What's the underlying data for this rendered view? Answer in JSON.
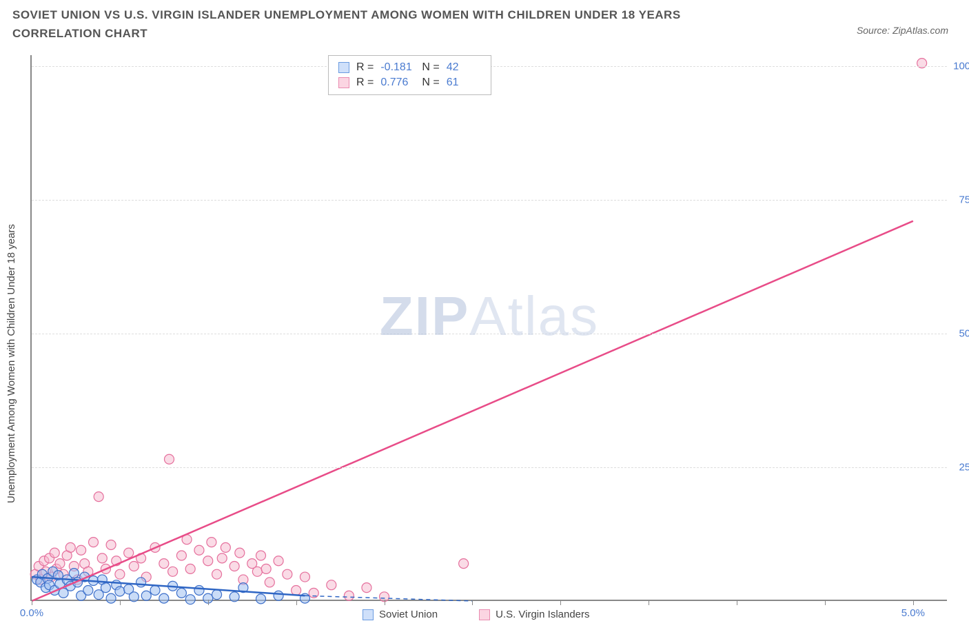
{
  "header": {
    "title": "SOVIET UNION VS U.S. VIRGIN ISLANDER UNEMPLOYMENT AMONG WOMEN WITH CHILDREN UNDER 18 YEARS CORRELATION CHART",
    "source_prefix": "Source: ",
    "source_name": "ZipAtlas.com"
  },
  "chart": {
    "type": "scatter",
    "y_axis_label": "Unemployment Among Women with Children Under 18 years",
    "watermark_bold": "ZIP",
    "watermark_light": "Atlas",
    "background_color": "#ffffff",
    "grid_color": "#dddddd",
    "axis_color": "#888888",
    "tick_label_color": "#4a7bd0",
    "xlim": [
      0,
      5.2
    ],
    "ylim": [
      0,
      102
    ],
    "x_ticks": [
      0,
      0.5,
      1.0,
      1.5,
      2.0,
      2.5,
      3.0,
      3.5,
      4.0,
      4.5,
      5.0
    ],
    "x_tick_labels": {
      "0": "0.0%",
      "5.0": "5.0%"
    },
    "y_grid": [
      25,
      50,
      75,
      100
    ],
    "y_tick_labels": [
      "25.0%",
      "50.0%",
      "75.0%",
      "100.0%"
    ],
    "stats": [
      {
        "swatch_fill": "#cfe0fa",
        "swatch_border": "#6a9be0",
        "r_label": "R = ",
        "r_value": "-0.181",
        "n_label": "N = ",
        "n_value": "42"
      },
      {
        "swatch_fill": "#fbd5e2",
        "swatch_border": "#e98bb0",
        "r_label": "R = ",
        "r_value": "0.776",
        "n_label": "N = ",
        "n_value": "61"
      }
    ],
    "legend": [
      {
        "swatch_fill": "#cfe0fa",
        "swatch_border": "#6a9be0",
        "label": "Soviet Union"
      },
      {
        "swatch_fill": "#fbd5e2",
        "swatch_border": "#e98bb0",
        "label": "U.S. Virgin Islanders"
      }
    ],
    "series_a": {
      "name": "Soviet Union",
      "marker_fill": "#9fc0f0",
      "marker_stroke": "#3d6fc9",
      "marker_fill_opacity": 0.55,
      "marker_radius": 7,
      "trend_color": "#2f66c4",
      "trend_width": 2.5,
      "trend_dash_extension": true,
      "trend": {
        "x1": 0,
        "y1": 4.5,
        "x2": 1.55,
        "y2": 1.0
      },
      "trend_dash": {
        "x1": 1.55,
        "y1": 1.0,
        "x2": 2.5,
        "y2": 0
      },
      "points": [
        [
          0.03,
          4.0
        ],
        [
          0.05,
          3.5
        ],
        [
          0.06,
          5.0
        ],
        [
          0.08,
          2.5
        ],
        [
          0.09,
          4.2
        ],
        [
          0.1,
          3.0
        ],
        [
          0.12,
          5.5
        ],
        [
          0.13,
          2.0
        ],
        [
          0.15,
          4.8
        ],
        [
          0.16,
          3.2
        ],
        [
          0.18,
          1.5
        ],
        [
          0.2,
          4.0
        ],
        [
          0.22,
          2.8
        ],
        [
          0.24,
          5.2
        ],
        [
          0.26,
          3.5
        ],
        [
          0.28,
          1.0
        ],
        [
          0.3,
          4.5
        ],
        [
          0.32,
          2.0
        ],
        [
          0.35,
          3.8
        ],
        [
          0.38,
          1.2
        ],
        [
          0.4,
          4.0
        ],
        [
          0.42,
          2.5
        ],
        [
          0.45,
          0.5
        ],
        [
          0.48,
          3.0
        ],
        [
          0.5,
          1.8
        ],
        [
          0.55,
          2.2
        ],
        [
          0.58,
          0.8
        ],
        [
          0.62,
          3.5
        ],
        [
          0.65,
          1.0
        ],
        [
          0.7,
          2.0
        ],
        [
          0.75,
          0.5
        ],
        [
          0.8,
          2.8
        ],
        [
          0.85,
          1.5
        ],
        [
          0.9,
          0.3
        ],
        [
          0.95,
          2.0
        ],
        [
          1.0,
          0.5
        ],
        [
          1.05,
          1.2
        ],
        [
          1.15,
          0.8
        ],
        [
          1.2,
          2.5
        ],
        [
          1.3,
          0.4
        ],
        [
          1.4,
          1.0
        ],
        [
          1.55,
          0.5
        ]
      ]
    },
    "series_b": {
      "name": "U.S. Virgin Islanders",
      "marker_fill": "#f5b8cd",
      "marker_stroke": "#e56f9c",
      "marker_fill_opacity": 0.5,
      "marker_radius": 7,
      "trend_color": "#e84c88",
      "trend_width": 2.5,
      "trend": {
        "x1": 0,
        "y1": 0,
        "x2": 5.0,
        "y2": 71
      },
      "points": [
        [
          0.02,
          5.0
        ],
        [
          0.04,
          6.5
        ],
        [
          0.05,
          4.0
        ],
        [
          0.07,
          7.5
        ],
        [
          0.08,
          5.5
        ],
        [
          0.1,
          8.0
        ],
        [
          0.11,
          4.5
        ],
        [
          0.13,
          9.0
        ],
        [
          0.14,
          6.0
        ],
        [
          0.16,
          7.0
        ],
        [
          0.18,
          5.0
        ],
        [
          0.2,
          8.5
        ],
        [
          0.22,
          10.0
        ],
        [
          0.24,
          6.5
        ],
        [
          0.26,
          4.0
        ],
        [
          0.28,
          9.5
        ],
        [
          0.3,
          7.0
        ],
        [
          0.32,
          5.5
        ],
        [
          0.35,
          11.0
        ],
        [
          0.38,
          19.5
        ],
        [
          0.4,
          8.0
        ],
        [
          0.42,
          6.0
        ],
        [
          0.45,
          10.5
        ],
        [
          0.48,
          7.5
        ],
        [
          0.5,
          5.0
        ],
        [
          0.55,
          9.0
        ],
        [
          0.58,
          6.5
        ],
        [
          0.62,
          8.0
        ],
        [
          0.65,
          4.5
        ],
        [
          0.7,
          10.0
        ],
        [
          0.75,
          7.0
        ],
        [
          0.78,
          26.5
        ],
        [
          0.8,
          5.5
        ],
        [
          0.85,
          8.5
        ],
        [
          0.88,
          11.5
        ],
        [
          0.9,
          6.0
        ],
        [
          0.95,
          9.5
        ],
        [
          1.0,
          7.5
        ],
        [
          1.02,
          11.0
        ],
        [
          1.05,
          5.0
        ],
        [
          1.08,
          8.0
        ],
        [
          1.1,
          10.0
        ],
        [
          1.15,
          6.5
        ],
        [
          1.18,
          9.0
        ],
        [
          1.2,
          4.0
        ],
        [
          1.25,
          7.0
        ],
        [
          1.28,
          5.5
        ],
        [
          1.3,
          8.5
        ],
        [
          1.33,
          6.0
        ],
        [
          1.35,
          3.5
        ],
        [
          1.4,
          7.5
        ],
        [
          1.45,
          5.0
        ],
        [
          1.5,
          2.0
        ],
        [
          1.55,
          4.5
        ],
        [
          1.6,
          1.5
        ],
        [
          1.7,
          3.0
        ],
        [
          1.8,
          1.0
        ],
        [
          1.9,
          2.5
        ],
        [
          2.0,
          0.8
        ],
        [
          2.45,
          7.0
        ],
        [
          5.05,
          100.5
        ]
      ]
    }
  }
}
